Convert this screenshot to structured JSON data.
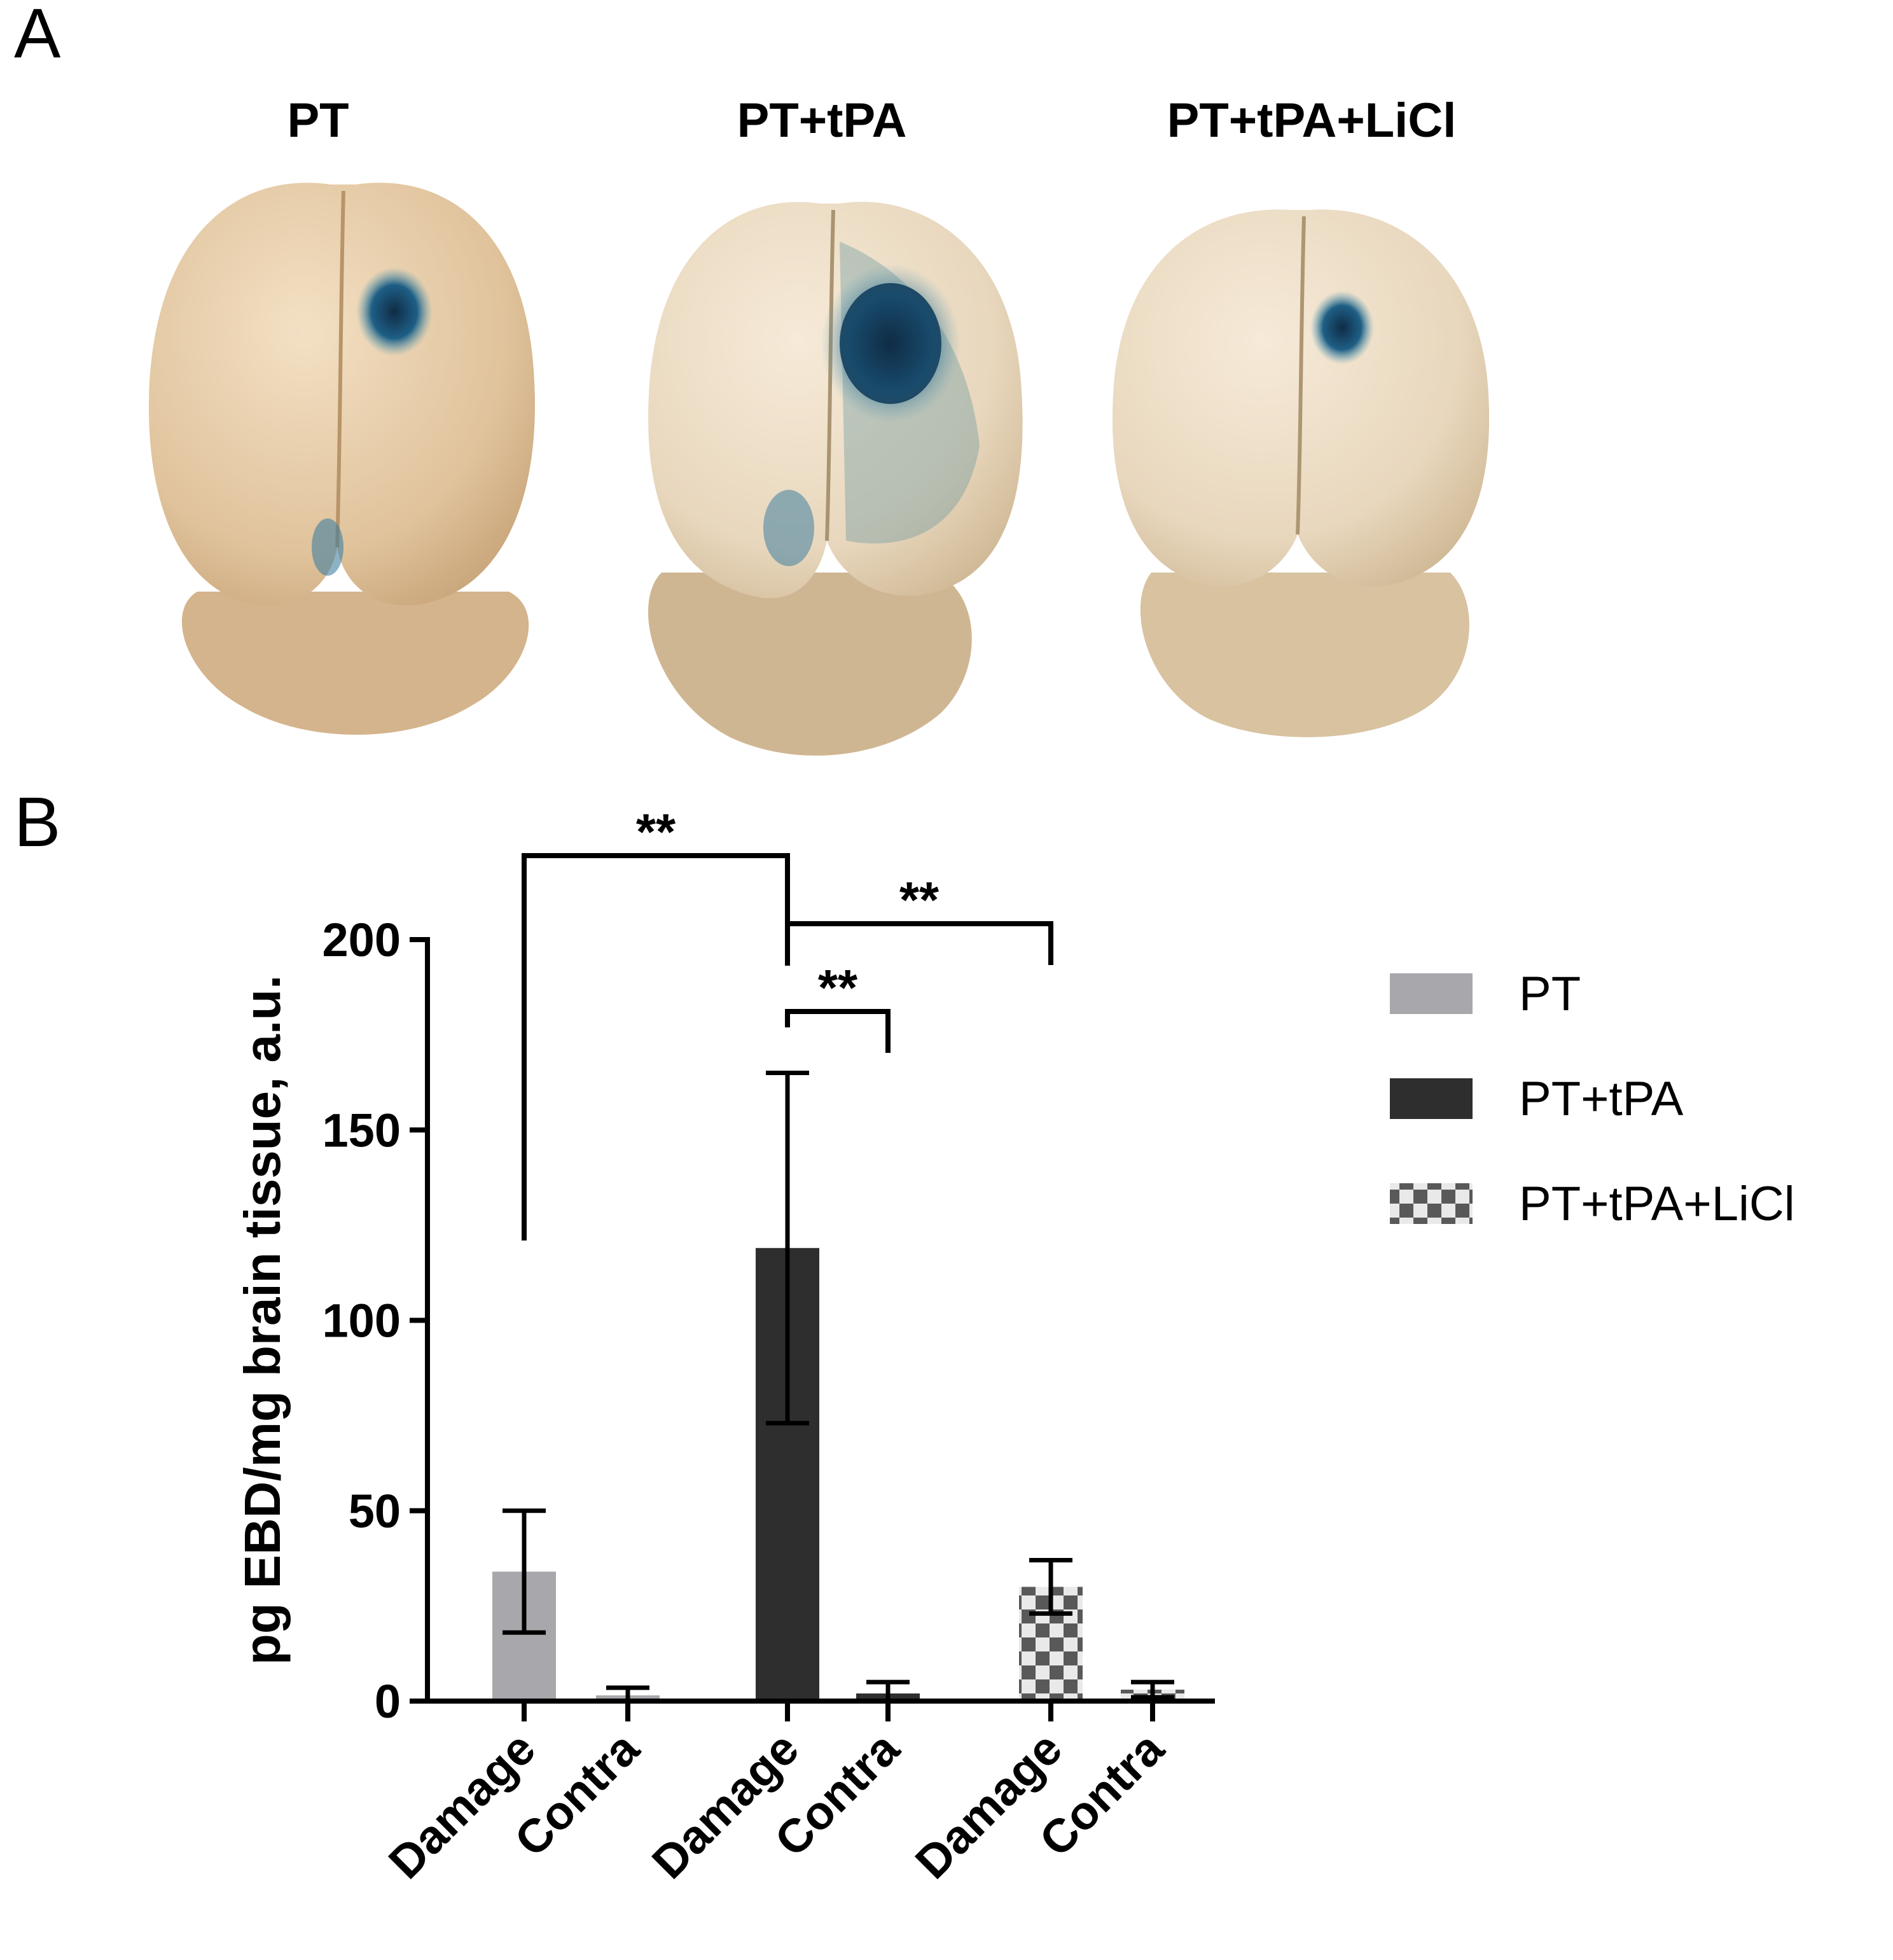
{
  "panel_a": {
    "label": "A",
    "group_titles": [
      "PT",
      "PT+tPA",
      "PT+tPA+LiCl"
    ]
  },
  "panel_b": {
    "label": "B"
  },
  "colors": {
    "PT": "#a8a8ac",
    "PT+tPA": "#2e2e2e",
    "PT+tPA+LiCl_light": "#e9e9e9",
    "PT+tPA+LiCl_dark": "#595959",
    "axis": "#000000",
    "brain_tissue": "#e3c7a0",
    "dye_blue": "#1e5f86"
  },
  "icons": [
    "brain-photo-pt",
    "brain-photo-pt-tpa",
    "brain-photo-pt-tpa-licl"
  ],
  "chart_data": {
    "type": "bar",
    "ylabel": "pg EBD/mg brain tissue, a.u.",
    "xlabel": "",
    "ylim": [
      0,
      200
    ],
    "yticks": [
      0,
      50,
      100,
      150,
      200
    ],
    "categories": [
      "Damage",
      "Contra",
      "Damage",
      "Contra",
      "Damage",
      "Contra"
    ],
    "bars": [
      {
        "series": "PT",
        "category": "Damage",
        "value": 34,
        "error": 16
      },
      {
        "series": "PT",
        "category": "Contra",
        "value": 1.5,
        "error": 2
      },
      {
        "series": "PT+tPA",
        "category": "Damage",
        "value": 119,
        "error": 46
      },
      {
        "series": "PT+tPA",
        "category": "Contra",
        "value": 2,
        "error": 3
      },
      {
        "series": "PT+tPA+LiCl",
        "category": "Damage",
        "value": 30,
        "error": 7
      },
      {
        "series": "PT+tPA+LiCl",
        "category": "Contra",
        "value": 3,
        "error": 2
      }
    ],
    "legend": [
      "PT",
      "PT+tPA",
      "PT+tPA+LiCl"
    ],
    "legend_position": "right",
    "significance": [
      {
        "from": 0,
        "to": 2,
        "label": "**"
      },
      {
        "from": 2,
        "to": 4,
        "label": "**"
      },
      {
        "from": 2,
        "to": 3,
        "label": "**"
      }
    ]
  }
}
